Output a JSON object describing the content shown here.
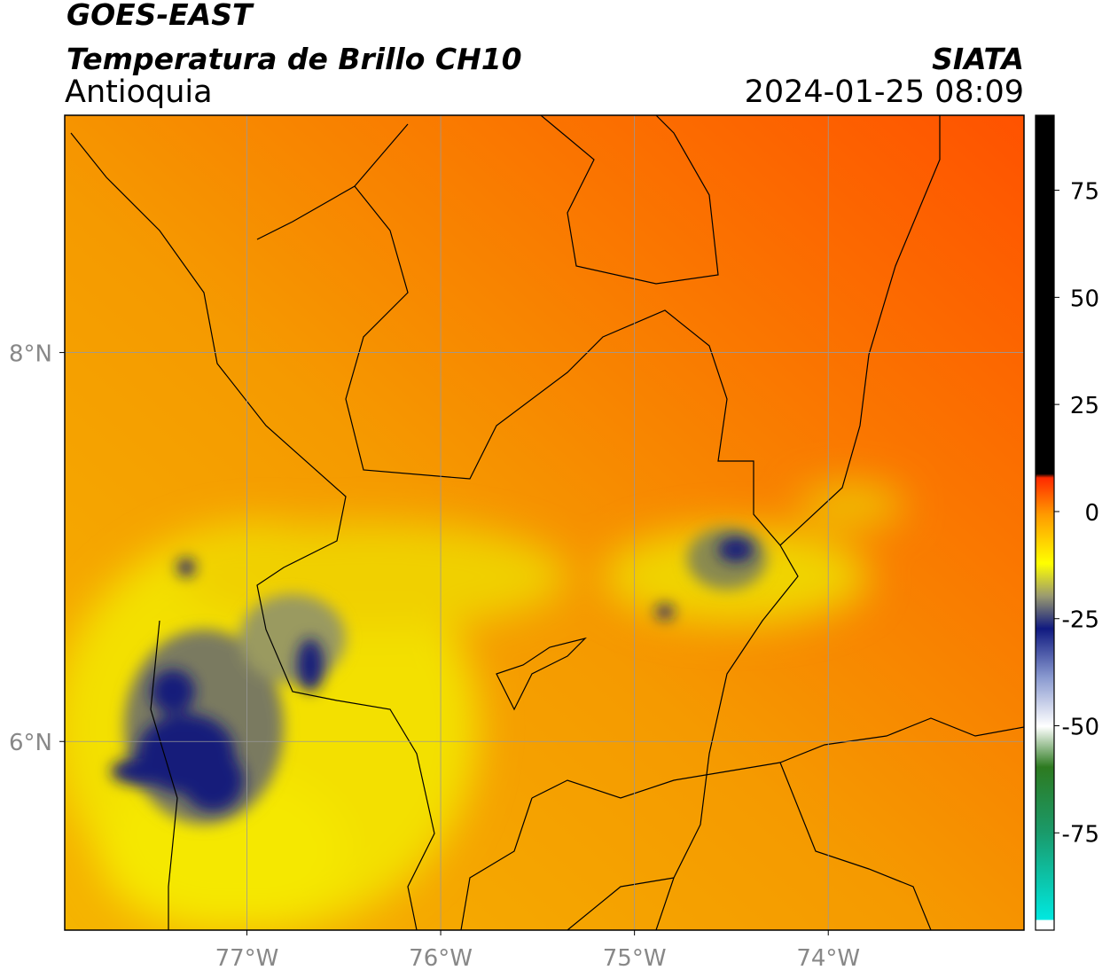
{
  "header": {
    "satellite": "GOES-EAST",
    "product": "Temperatura de Brillo CH10",
    "region": "Antioquia",
    "source": "SIATA",
    "timestamp": "2024-01-25 08:09"
  },
  "map": {
    "lon_range": [
      -77.94,
      -72.99
    ],
    "lat_range": [
      5.03,
      9.22
    ],
    "lat_ticks": [
      {
        "value": 8,
        "label": "8°N"
      },
      {
        "value": 6,
        "label": "6°N"
      }
    ],
    "lon_ticks": [
      {
        "value": -77,
        "label": "77°W"
      },
      {
        "value": -76,
        "label": "76°W"
      },
      {
        "value": -75,
        "label": "75°W"
      },
      {
        "value": -74,
        "label": "74°W"
      }
    ],
    "grid": true
  },
  "colorbar": {
    "lim": [
      -97.7,
      92.5
    ],
    "ticks": [
      75,
      50,
      25,
      0,
      -25,
      -50,
      -75
    ]
  }
}
